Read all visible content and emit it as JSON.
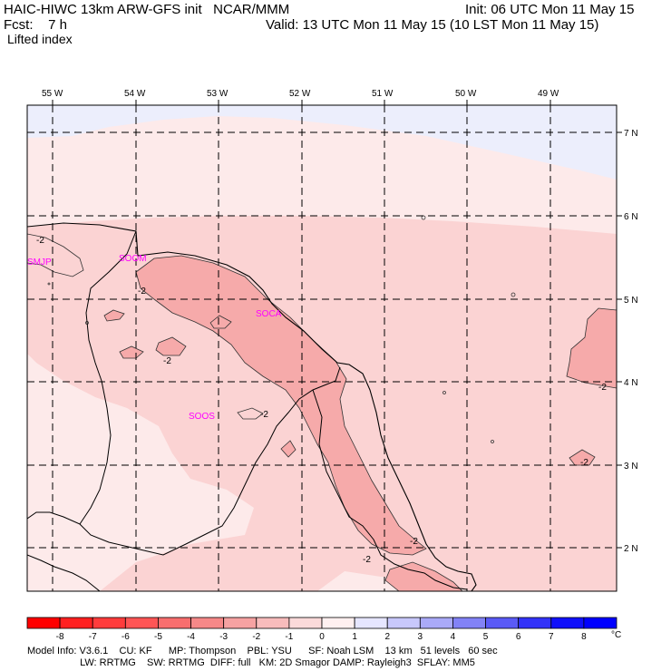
{
  "header": {
    "model_line": "HAIC-HIWC 13km ARW-GFS init   NCAR/MMM",
    "init_line": "Init: 06 UTC Mon 11 May 15",
    "fcst_line": "Fcst:    7 h",
    "valid_line": "Valid: 13 UTC Mon 11 May 15 (10 LST Mon 11 May 15)",
    "field_name": "Lifted index"
  },
  "map": {
    "lon_labels": [
      "55 W",
      "54 W",
      "53 W",
      "52 W",
      "51 W",
      "50 W",
      "49 W"
    ],
    "lat_labels": [
      "7 N",
      "6 N",
      "5 N",
      "4 N",
      "3 N",
      "2 N"
    ],
    "stations": [
      "SMJP",
      "SOCA",
      "SOOS",
      "SOOM"
    ],
    "contour_labels": [
      "-2",
      "-2",
      "-2",
      "-2",
      "-2",
      "-2",
      "-2",
      "-2"
    ],
    "colors": {
      "bg_pale": "#fdeaea",
      "light_pink": "#fbd3d3",
      "mid_pink": "#f6aaaa",
      "lavender": "#eceefc"
    }
  },
  "colorbar": {
    "ticks": [
      "-8",
      "-7",
      "-6",
      "-5",
      "-4",
      "-3",
      "-2",
      "-1",
      "0",
      "1",
      "2",
      "3",
      "4",
      "5",
      "6",
      "7",
      "8"
    ],
    "unit": "°C",
    "colors": [
      "#ff0000",
      "#ff2020",
      "#ff3c3c",
      "#ff5555",
      "#f86e6e",
      "#f68888",
      "#f6a2a2",
      "#f8bcbc",
      "#fbdada",
      "#fff0f0",
      "#e6e6ff",
      "#c8c8fc",
      "#aaaaf8",
      "#8282f6",
      "#5a5af6",
      "#3232f8",
      "#1010fa",
      "#0000ff"
    ]
  },
  "footer": {
    "line1": "Model Info: V3.6.1    CU: KF      MP: Thompson    PBL: YSU      SF: Noah LSM    13 km   51 levels   60 sec",
    "line2": "                   LW: RRTMG    SW: RRTMG  DIFF: full   KM: 2D Smagor DAMP: Rayleigh3  SFLAY: MM5"
  }
}
